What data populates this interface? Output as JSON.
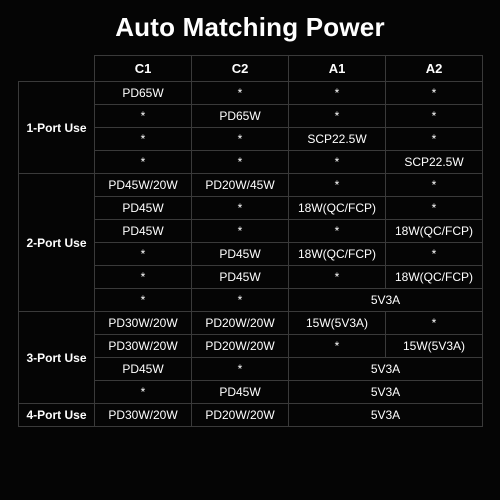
{
  "title": "Auto Matching Power",
  "colors": {
    "background": "#050505",
    "text": "#ffffff",
    "border": "#3a3a3a"
  },
  "table": {
    "columns": [
      "C1",
      "C2",
      "A1",
      "A2"
    ],
    "sections": [
      {
        "label": "1-Port Use",
        "rows": [
          {
            "cells": [
              {
                "text": "PD65W"
              },
              {
                "text": "*"
              },
              {
                "text": "*"
              },
              {
                "text": "*"
              }
            ]
          },
          {
            "cells": [
              {
                "text": "*"
              },
              {
                "text": "PD65W"
              },
              {
                "text": "*"
              },
              {
                "text": "*"
              }
            ]
          },
          {
            "cells": [
              {
                "text": "*"
              },
              {
                "text": "*"
              },
              {
                "text": "SCP22.5W"
              },
              {
                "text": "*"
              }
            ]
          },
          {
            "cells": [
              {
                "text": "*"
              },
              {
                "text": "*"
              },
              {
                "text": "*"
              },
              {
                "text": "SCP22.5W"
              }
            ]
          }
        ]
      },
      {
        "label": "2-Port Use",
        "rows": [
          {
            "cells": [
              {
                "text": "PD45W/20W"
              },
              {
                "text": "PD20W/45W"
              },
              {
                "text": "*"
              },
              {
                "text": "*"
              }
            ]
          },
          {
            "cells": [
              {
                "text": "PD45W"
              },
              {
                "text": "*"
              },
              {
                "text": "18W(QC/FCP)"
              },
              {
                "text": "*"
              }
            ]
          },
          {
            "cells": [
              {
                "text": "PD45W"
              },
              {
                "text": "*"
              },
              {
                "text": "*"
              },
              {
                "text": "18W(QC/FCP)"
              }
            ]
          },
          {
            "cells": [
              {
                "text": "*"
              },
              {
                "text": "PD45W"
              },
              {
                "text": "18W(QC/FCP)"
              },
              {
                "text": "*"
              }
            ]
          },
          {
            "cells": [
              {
                "text": "*"
              },
              {
                "text": "PD45W"
              },
              {
                "text": "*"
              },
              {
                "text": "18W(QC/FCP)"
              }
            ]
          },
          {
            "cells": [
              {
                "text": "*"
              },
              {
                "text": "*"
              },
              {
                "text": "5V3A",
                "colspan": 2
              }
            ]
          }
        ]
      },
      {
        "label": "3-Port Use",
        "rows": [
          {
            "cells": [
              {
                "text": "PD30W/20W"
              },
              {
                "text": "PD20W/20W"
              },
              {
                "text": "15W(5V3A)"
              },
              {
                "text": "*"
              }
            ]
          },
          {
            "cells": [
              {
                "text": "PD30W/20W"
              },
              {
                "text": "PD20W/20W"
              },
              {
                "text": "*"
              },
              {
                "text": "15W(5V3A)"
              }
            ]
          },
          {
            "cells": [
              {
                "text": "PD45W"
              },
              {
                "text": "*"
              },
              {
                "text": "5V3A",
                "colspan": 2
              }
            ]
          },
          {
            "cells": [
              {
                "text": "*"
              },
              {
                "text": "PD45W"
              },
              {
                "text": "5V3A",
                "colspan": 2
              }
            ]
          }
        ]
      },
      {
        "label": "4-Port Use",
        "rows": [
          {
            "cells": [
              {
                "text": "PD30W/20W"
              },
              {
                "text": "PD20W/20W"
              },
              {
                "text": "5V3A",
                "colspan": 2
              }
            ]
          }
        ]
      }
    ]
  }
}
